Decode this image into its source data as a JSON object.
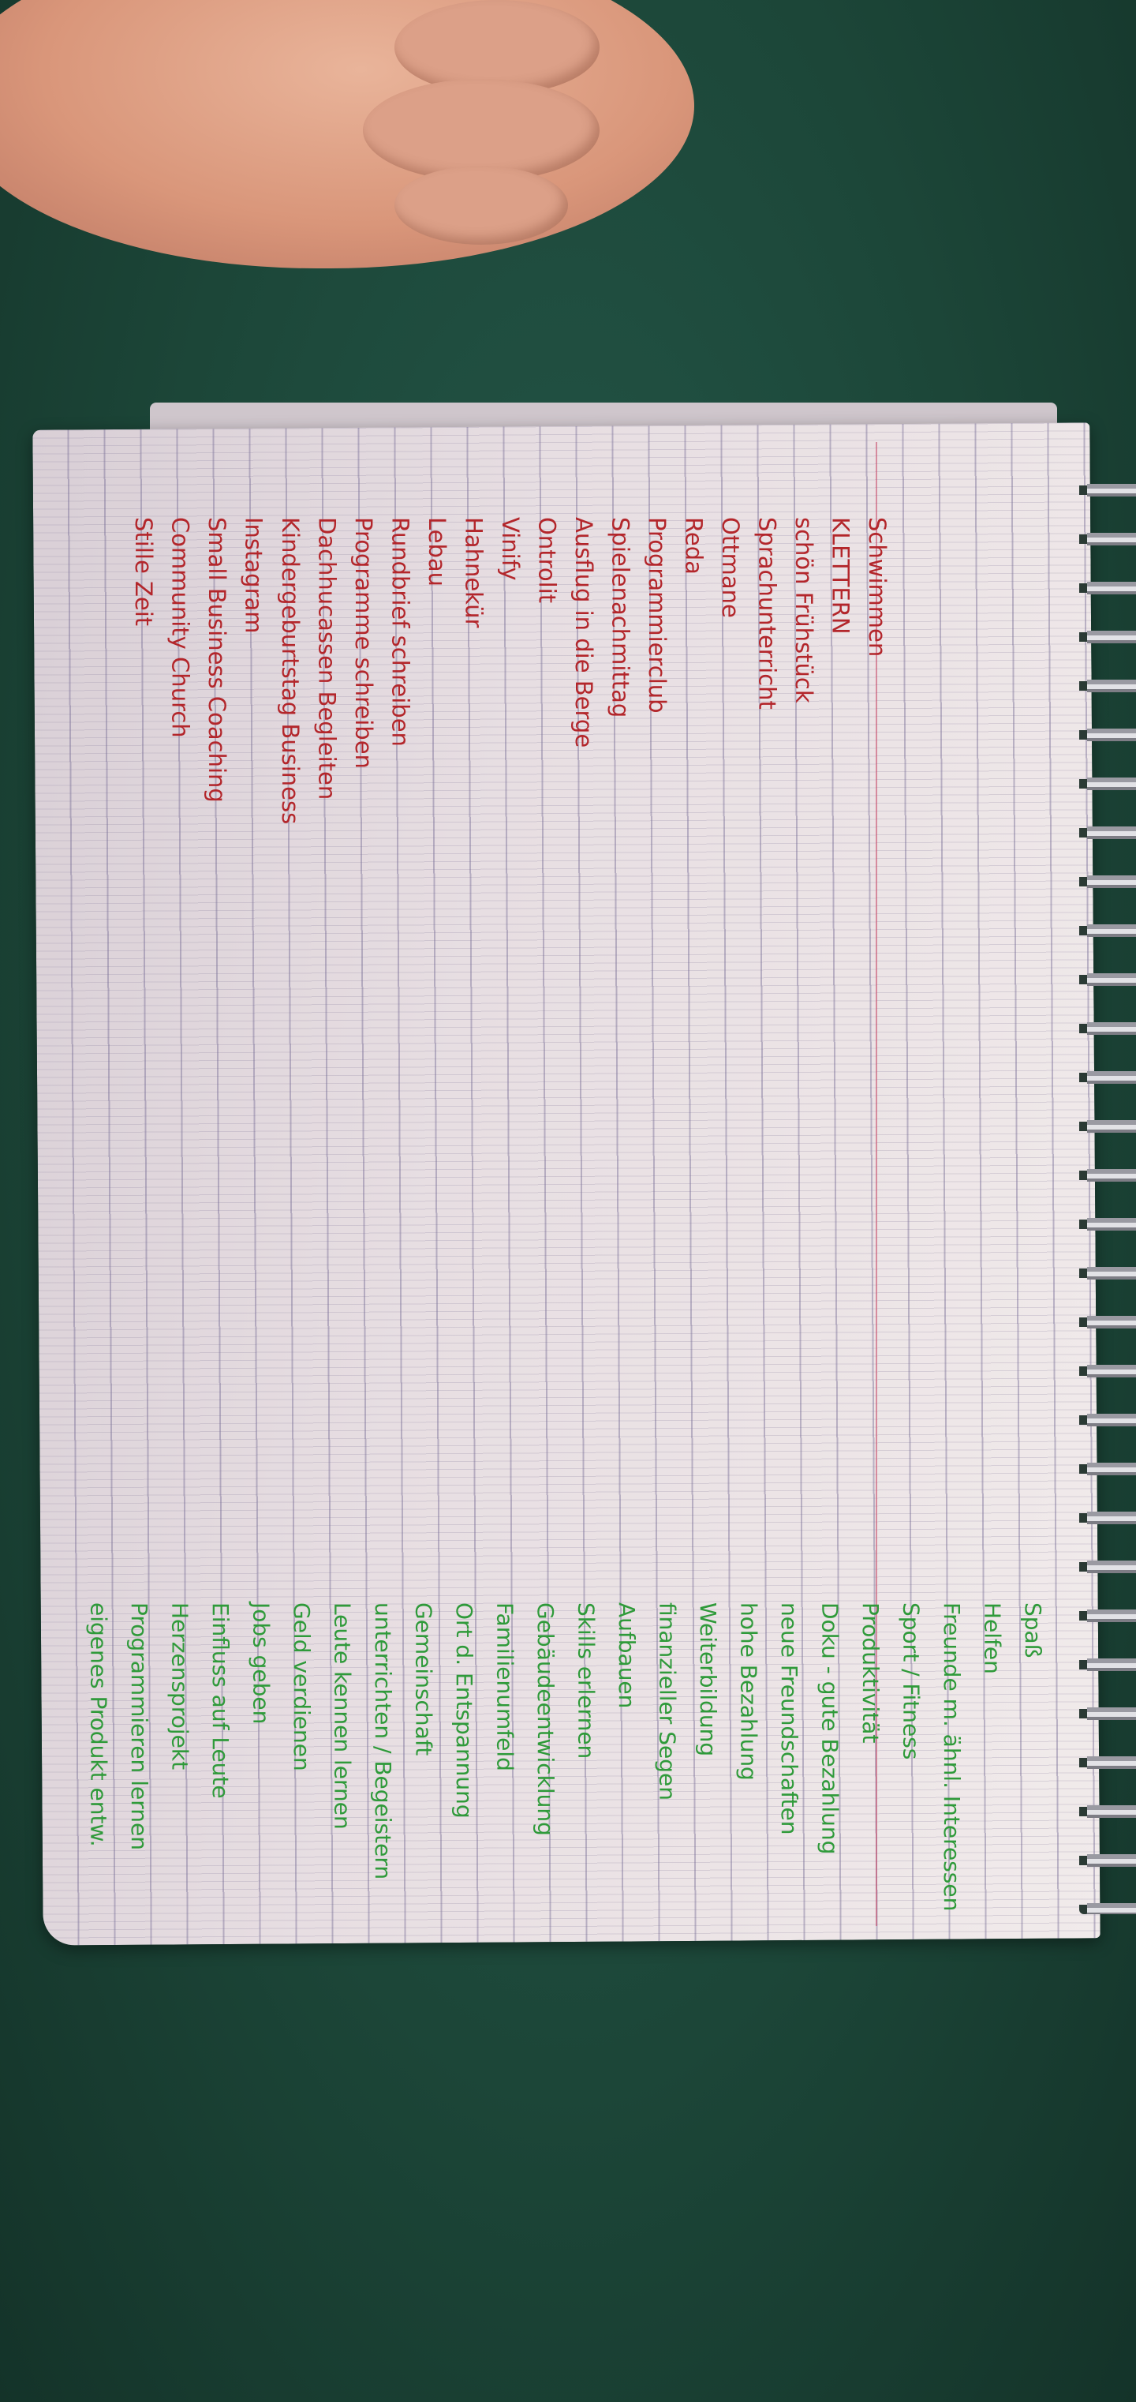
{
  "colors": {
    "background": "#1c4638",
    "paper": "#ece4e6",
    "red_ink": "#b3262b",
    "green_ink": "#2f9a3a"
  },
  "red_list": [
    "Schwimmen",
    "KLETTERN",
    "schön Frühstück",
    "Sprachunterricht",
    "Ottmane",
    "Reda",
    "Programmierclub",
    "Spielenachmittag",
    "Ausflug in die Berge",
    "Ontrolit",
    "Vinify",
    "Hahnekür",
    "Lebau",
    "Rundbrief schreiben",
    "Programme schreiben",
    "Dachhucassen Begleiten",
    "Kindergeburtstag Business",
    "Instagram",
    "Small Business Coaching",
    "Community Church",
    "Stille Zeit"
  ],
  "green_list": [
    "Spaß",
    "Helfen",
    "Freunde m. ähnl. Interessen",
    "Sport / Fitness",
    "Produktivität",
    "Doku - gute Bezahlung",
    "neue Freundschaften",
    "hohe Bezahlung",
    "Weiterbildung",
    "finanzieller Segen",
    "Aufbauen",
    "Skills erlernen",
    "Gebäudeentwicklung",
    "Familienumfeld",
    "Ort d. Entspannung",
    "Gemeinschaft",
    "unterrichten / Begeistern",
    "Leute kennen lernen",
    "Geld verdienen",
    "Jobs geben",
    "Einfluss auf Leute",
    "Herzensprojekt",
    "Programmieren lernen",
    "eigenes Produkt entw."
  ]
}
